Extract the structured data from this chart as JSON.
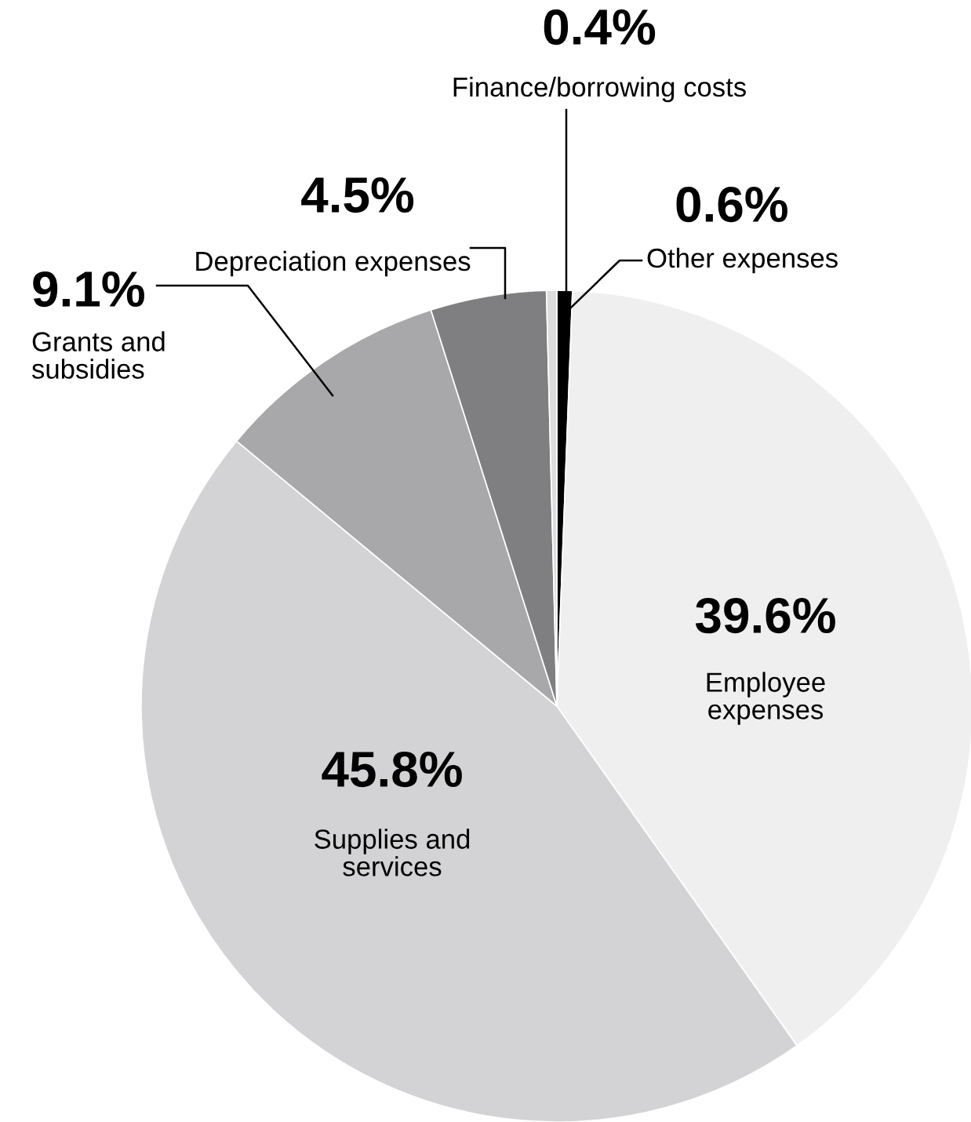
{
  "chart_data": {
    "type": "pie",
    "categories": [
      "Other expenses",
      "Employee\nexpenses",
      "Supplies and\nservices",
      "Grants and\nsubsidies",
      "Depreciation expenses",
      "Finance/borrowing costs"
    ],
    "values": [
      0.6,
      39.6,
      45.8,
      9.1,
      4.5,
      0.4
    ],
    "colors": [
      "#000000",
      "#efefef",
      "#d3d3d5",
      "#a8a8aa",
      "#7f7f81",
      "#dcdcdc"
    ],
    "value_labels": [
      "0.6%",
      "39.6%",
      "45.8%",
      "9.1%",
      "4.5%",
      "0.4%"
    ],
    "legend": false
  }
}
